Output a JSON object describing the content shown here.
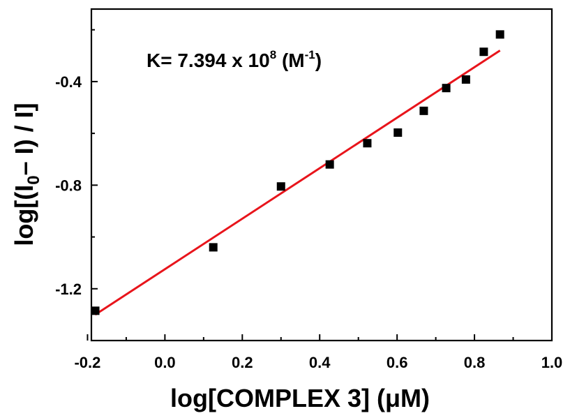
{
  "chart_data": {
    "type": "scatter",
    "xlabel": {
      "pre": "log[COMPLEX 3] (",
      "mu": "μ",
      "post": "M)"
    },
    "ylabel": {
      "pre": "log[(I",
      "sub": "0",
      "mid": "– I) / I]"
    },
    "annotation": {
      "main": "K= 7.394 x 10",
      "exp": "8",
      "unit_open": " (M",
      "unit_exp": "-1",
      "unit_close": ")"
    },
    "xlim": [
      -0.19,
      1.0
    ],
    "ylim": [
      -1.4,
      -0.12
    ],
    "x_ticks": [
      -0.2,
      0.0,
      0.2,
      0.4,
      0.6,
      0.8,
      1.0
    ],
    "x_tick_labels": [
      "-0.2",
      "0.0",
      "0.2",
      "0.4",
      "0.6",
      "0.8",
      "1.0"
    ],
    "y_ticks": [
      -1.2,
      -0.8,
      -0.4
    ],
    "y_tick_labels": [
      "-1.2",
      "-0.8",
      "-0.4"
    ],
    "grid": false,
    "series": [
      {
        "type": "scatter",
        "marker": "square",
        "color": "#000000",
        "x": [
          -0.18,
          0.125,
          0.3,
          0.426,
          0.523,
          0.602,
          0.669,
          0.727,
          0.778,
          0.824,
          0.866
        ],
        "y": [
          -1.285,
          -1.04,
          -0.805,
          -0.72,
          -0.638,
          -0.597,
          -0.513,
          -0.425,
          -0.392,
          -0.285,
          -0.218
        ]
      },
      {
        "type": "line",
        "color": "#e8141b",
        "x": [
          -0.18,
          0.866
        ],
        "y": [
          -1.3,
          -0.28
        ]
      }
    ]
  }
}
